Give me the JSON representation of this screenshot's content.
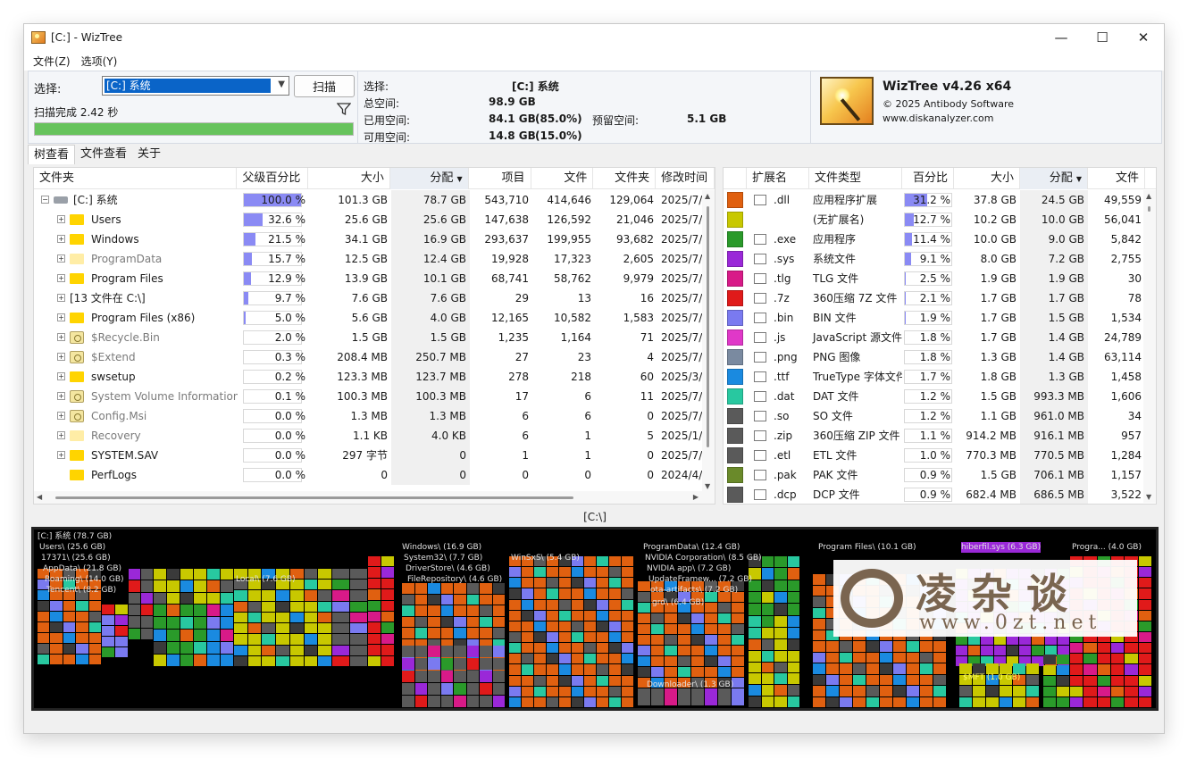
{
  "window": {
    "title": "[C:]  - WizTree",
    "minimize": "—",
    "maximize": "☐",
    "close": "✕"
  },
  "menu": [
    "文件(Z)",
    "选项(Y)"
  ],
  "top": {
    "select_label": "选择:",
    "drive_value": "[C:] 系统",
    "scan_button": "扫描",
    "scan_status": "扫描完成 2.42 秒",
    "progress": 1.0,
    "stats": {
      "selected_label": "选择:",
      "selected_value": "[C:]  系统",
      "total_label": "总空间:",
      "total_value": "98.9 GB",
      "used_label": "已用空间:",
      "used_value": "84.1 GB",
      "used_pct": "(85.0%)",
      "reserved_label": "预留空间:",
      "reserved_value": "5.1 GB",
      "free_label": "可用空间:",
      "free_value": "14.8 GB",
      "free_pct": "(15.0%)"
    },
    "about": {
      "title": "WizTree v4.26 x64",
      "copyright": "© 2025 Antibody Software",
      "url": "www.diskanalyzer.com"
    }
  },
  "tabs": [
    "树查看",
    "文件查看",
    "关于"
  ],
  "tree": {
    "columns": [
      "文件夹",
      "父级百分比",
      "大小",
      "分配",
      "项目",
      "文件",
      "文件夹",
      "修改时间"
    ],
    "rows": [
      {
        "name": "[C:] 系统",
        "icon": "drive-icon",
        "level": 0,
        "exp": "−",
        "pct": "100.0 %",
        "pctv": 100.0,
        "size": "101.3 GB",
        "alloc": "78.7 GB",
        "items": "543,710",
        "files": "414,646",
        "folders": "129,064",
        "mod": "2025/7/"
      },
      {
        "name": "Users",
        "icon": "folder-icon",
        "level": 1,
        "exp": "+",
        "pct": "32.6 %",
        "pctv": 32.6,
        "size": "25.6 GB",
        "alloc": "25.6 GB",
        "items": "147,638",
        "files": "126,592",
        "folders": "21,046",
        "mod": "2025/7/"
      },
      {
        "name": "Windows",
        "icon": "folder-icon",
        "level": 1,
        "exp": "+",
        "pct": "21.5 %",
        "pctv": 21.5,
        "size": "34.1 GB",
        "alloc": "16.9 GB",
        "items": "293,637",
        "files": "199,955",
        "folders": "93,682",
        "mod": "2025/7/"
      },
      {
        "name": "ProgramData",
        "icon": "hidden-folder-icon",
        "level": 1,
        "exp": "+",
        "gray": true,
        "pct": "15.7 %",
        "pctv": 15.7,
        "size": "12.5 GB",
        "alloc": "12.4 GB",
        "items": "19,928",
        "files": "17,323",
        "folders": "2,605",
        "mod": "2025/7/"
      },
      {
        "name": "Program Files",
        "icon": "folder-icon",
        "level": 1,
        "exp": "+",
        "pct": "12.9 %",
        "pctv": 12.9,
        "size": "13.9 GB",
        "alloc": "10.1 GB",
        "items": "68,741",
        "files": "58,762",
        "folders": "9,979",
        "mod": "2025/7/"
      },
      {
        "name": "[13 文件在 C:\\]",
        "icon": "",
        "level": 1,
        "exp": "+",
        "pct": "9.7 %",
        "pctv": 9.7,
        "size": "7.6 GB",
        "alloc": "7.6 GB",
        "items": "29",
        "files": "13",
        "folders": "16",
        "mod": "2025/7/"
      },
      {
        "name": "Program Files (x86)",
        "icon": "folder-icon",
        "level": 1,
        "exp": "+",
        "pct": "5.0 %",
        "pctv": 5.0,
        "size": "5.6 GB",
        "alloc": "4.0 GB",
        "items": "12,165",
        "files": "10,582",
        "folders": "1,583",
        "mod": "2025/7/"
      },
      {
        "name": "$Recycle.Bin",
        "icon": "system-folder-icon",
        "level": 1,
        "exp": "+",
        "gray": true,
        "pct": "2.0 %",
        "pctv": 2.0,
        "size": "1.5 GB",
        "alloc": "1.5 GB",
        "items": "1,235",
        "files": "1,164",
        "folders": "71",
        "mod": "2025/7/"
      },
      {
        "name": "$Extend",
        "icon": "system-folder-icon",
        "level": 1,
        "exp": "+",
        "gray": true,
        "pct": "0.3 %",
        "pctv": 0.3,
        "size": "208.4 MB",
        "alloc": "250.7 MB",
        "items": "27",
        "files": "23",
        "folders": "4",
        "mod": "2025/7/"
      },
      {
        "name": "swsetup",
        "icon": "folder-icon",
        "level": 1,
        "exp": "+",
        "pct": "0.2 %",
        "pctv": 0.2,
        "size": "123.3 MB",
        "alloc": "123.7 MB",
        "items": "278",
        "files": "218",
        "folders": "60",
        "mod": "2025/3/"
      },
      {
        "name": "System Volume Information",
        "icon": "system-folder-icon",
        "level": 1,
        "exp": "+",
        "gray": true,
        "pct": "0.1 %",
        "pctv": 0.1,
        "size": "100.3 MB",
        "alloc": "100.3 MB",
        "items": "17",
        "files": "6",
        "folders": "11",
        "mod": "2025/7/"
      },
      {
        "name": "Config.Msi",
        "icon": "system-folder-icon",
        "level": 1,
        "exp": "+",
        "gray": true,
        "pct": "0.0 %",
        "pctv": 0.0,
        "size": "1.3 MB",
        "alloc": "1.3 MB",
        "items": "6",
        "files": "6",
        "folders": "0",
        "mod": "2025/7/"
      },
      {
        "name": "Recovery",
        "icon": "hidden-folder-icon",
        "level": 1,
        "exp": "+",
        "gray": true,
        "pct": "0.0 %",
        "pctv": 0.0,
        "size": "1.1 KB",
        "alloc": "4.0 KB",
        "items": "6",
        "files": "1",
        "folders": "5",
        "mod": "2025/1/"
      },
      {
        "name": "SYSTEM.SAV",
        "icon": "folder-icon",
        "level": 1,
        "exp": "+",
        "pct": "0.0 %",
        "pctv": 0.0,
        "size": "297 字节",
        "alloc": "0",
        "items": "1",
        "files": "1",
        "folders": "0",
        "mod": "2025/7/"
      },
      {
        "name": "PerfLogs",
        "icon": "folder-icon",
        "level": 1,
        "exp": "",
        "pct": "0.0 %",
        "pctv": 0.0,
        "size": "0",
        "alloc": "0",
        "items": "0",
        "files": "0",
        "folders": "0",
        "mod": "2024/4/"
      }
    ]
  },
  "ext": {
    "columns": [
      "扩展名",
      "文件类型",
      "百分比",
      "大小",
      "分配",
      "文件"
    ],
    "rows": [
      {
        "color": "#e06010",
        "icon": "dll-icon",
        "ext": ".dll",
        "type": "应用程序扩展",
        "pct": "31.2 %",
        "pctv": 31.2,
        "size": "37.8 GB",
        "alloc": "24.5 GB",
        "files": "49,559"
      },
      {
        "color": "#c8c800",
        "icon": "",
        "ext": "",
        "type": "(无扩展名)",
        "pct": "12.7 %",
        "pctv": 12.7,
        "size": "10.2 GB",
        "alloc": "10.0 GB",
        "files": "56,041"
      },
      {
        "color": "#2a9a2a",
        "icon": "exe-icon",
        "ext": ".exe",
        "type": "应用程序",
        "pct": "11.4 %",
        "pctv": 11.4,
        "size": "10.0 GB",
        "alloc": "9.0 GB",
        "files": "5,842"
      },
      {
        "color": "#9a28d8",
        "icon": "sys-icon",
        "ext": ".sys",
        "type": "系统文件",
        "pct": "9.1 %",
        "pctv": 9.1,
        "size": "8.0 GB",
        "alloc": "7.2 GB",
        "files": "2,755"
      },
      {
        "color": "#d81a88",
        "icon": "file-icon",
        "ext": ".tlg",
        "type": "TLG 文件",
        "pct": "2.5 %",
        "pctv": 2.5,
        "size": "1.9 GB",
        "alloc": "1.9 GB",
        "files": "30"
      },
      {
        "color": "#e01a1a",
        "icon": "archive-icon",
        "ext": ".7z",
        "type": "360压缩 7Z 文件",
        "pct": "2.1 %",
        "pctv": 2.1,
        "size": "1.7 GB",
        "alloc": "1.7 GB",
        "files": "78"
      },
      {
        "color": "#7a7af0",
        "icon": "file-icon",
        "ext": ".bin",
        "type": "BIN 文件",
        "pct": "1.9 %",
        "pctv": 1.9,
        "size": "1.7 GB",
        "alloc": "1.5 GB",
        "files": "1,534"
      },
      {
        "color": "#e038c8",
        "icon": "js-icon",
        "ext": ".js",
        "type": "JavaScript 源文件",
        "pct": "1.8 %",
        "pctv": 1.8,
        "size": "1.7 GB",
        "alloc": "1.4 GB",
        "files": "24,789"
      },
      {
        "color": "#7a8aa0",
        "icon": "image-icon",
        "ext": ".png",
        "type": "PNG 图像",
        "pct": "1.8 %",
        "pctv": 1.8,
        "size": "1.3 GB",
        "alloc": "1.4 GB",
        "files": "63,114"
      },
      {
        "color": "#1a8ae0",
        "icon": "font-icon",
        "ext": ".ttf",
        "type": "TrueType 字体文件",
        "pct": "1.7 %",
        "pctv": 1.7,
        "size": "1.8 GB",
        "alloc": "1.3 GB",
        "files": "1,458"
      },
      {
        "color": "#28c8a0",
        "icon": "file-icon",
        "ext": ".dat",
        "type": "DAT 文件",
        "pct": "1.2 %",
        "pctv": 1.2,
        "size": "1.5 GB",
        "alloc": "993.3 MB",
        "files": "1,606"
      },
      {
        "color": "#5a5a5a",
        "icon": "file-icon",
        "ext": ".so",
        "type": "SO 文件",
        "pct": "1.2 %",
        "pctv": 1.2,
        "size": "1.1 GB",
        "alloc": "961.0 MB",
        "files": "34"
      },
      {
        "color": "#5a5a5a",
        "icon": "archive-icon",
        "ext": ".zip",
        "type": "360压缩 ZIP 文件",
        "pct": "1.1 %",
        "pctv": 1.1,
        "size": "914.2 MB",
        "alloc": "916.1 MB",
        "files": "957"
      },
      {
        "color": "#5a5a5a",
        "icon": "file-icon",
        "ext": ".etl",
        "type": "ETL 文件",
        "pct": "1.0 %",
        "pctv": 1.0,
        "size": "770.3 MB",
        "alloc": "770.5 MB",
        "files": "1,284"
      },
      {
        "color": "#6a8a2a",
        "icon": "file-icon",
        "ext": ".pak",
        "type": "PAK 文件",
        "pct": "0.9 %",
        "pctv": 0.9,
        "size": "1.5 GB",
        "alloc": "706.1 MB",
        "files": "1,157"
      },
      {
        "color": "#5a5a5a",
        "icon": "dcp-icon",
        "ext": ".dcp",
        "type": "DCP 文件",
        "pct": "0.9 %",
        "pctv": 0.9,
        "size": "682.4 MB",
        "alloc": "686.5 MB",
        "files": "3,522"
      }
    ]
  },
  "path": "[C:\\]",
  "treemap": {
    "labels": [
      "[C:] 系统  (78.7 GB)",
      "Users\\ (25.6 GB)",
      "17371\\ (25.6 GB)",
      "AppData\\ (21.8 GB)",
      "Roaming\\ (14.0 GB)",
      "Tencent\\ (8.2 GB)",
      "Local\\ (7.6 GB)",
      "Windows\\ (16.9 GB)",
      "System32\\ (7.7 GB)",
      "DriverStore\\ (4.6 GB)",
      "FileRepository\\ (4.6 GB)",
      "WinSxS\\ (5.4 GB)",
      "ProgramData\\ (12.4 GB)",
      "NVIDIA Corporation\\ (8.5 GB)",
      "NVIDIA app\\ (7.2 GB)",
      "UpdateFramew... (7.2 GB)",
      "ota-artifacts\\ (7.2 GB)",
      "grd\\ (6.4 GB)",
      "Downloader\\ (1.3 GB)",
      "Program Files\\ (10.1 GB)",
      "hiberfil.sys (6.3 GB)",
      "Progra... (4.0 GB)",
      "$MFT (1.0 GB)"
    ]
  },
  "watermark": {
    "title": "凌杂谈",
    "url": "www.0zt.net"
  }
}
